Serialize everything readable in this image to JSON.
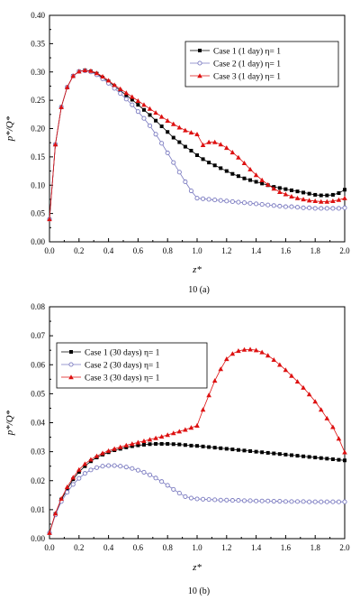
{
  "chart_data": [
    {
      "type": "line",
      "caption": "10 (a)",
      "xlabel": "z*",
      "ylabel": "p*/Q*",
      "xlim": [
        0.0,
        2.0
      ],
      "ylim": [
        0.0,
        0.4
      ],
      "xticks": [
        "0.0",
        "0.2",
        "0.4",
        "0.6",
        "0.8",
        "1.0",
        "1.2",
        "1.4",
        "1.6",
        "1.8",
        "2.0"
      ],
      "yticks": [
        "0.00",
        "0.05",
        "0.10",
        "0.15",
        "0.20",
        "0.25",
        "0.30",
        "0.35",
        "0.40"
      ],
      "grid": false,
      "legend_position": "top-right",
      "series": [
        {
          "name": "Case 1 (1 day) η= 1",
          "color": "#000000",
          "marker": "square-filled",
          "x": [
            0.0,
            0.04,
            0.08,
            0.12,
            0.16,
            0.2,
            0.24,
            0.28,
            0.32,
            0.36,
            0.4,
            0.44,
            0.48,
            0.52,
            0.56,
            0.6,
            0.64,
            0.68,
            0.72,
            0.76,
            0.8,
            0.84,
            0.88,
            0.92,
            0.96,
            1.0,
            1.04,
            1.08,
            1.12,
            1.16,
            1.2,
            1.24,
            1.28,
            1.32,
            1.36,
            1.4,
            1.44,
            1.48,
            1.52,
            1.56,
            1.6,
            1.64,
            1.68,
            1.72,
            1.76,
            1.8,
            1.84,
            1.88,
            1.92,
            1.96,
            2.0
          ],
          "y": [
            0.04,
            0.172,
            0.238,
            0.273,
            0.293,
            0.301,
            0.303,
            0.301,
            0.297,
            0.29,
            0.283,
            0.275,
            0.267,
            0.259,
            0.251,
            0.242,
            0.233,
            0.224,
            0.214,
            0.204,
            0.194,
            0.184,
            0.176,
            0.168,
            0.161,
            0.153,
            0.146,
            0.14,
            0.135,
            0.13,
            0.125,
            0.12,
            0.116,
            0.112,
            0.109,
            0.106,
            0.103,
            0.1,
            0.097,
            0.095,
            0.093,
            0.091,
            0.089,
            0.087,
            0.085,
            0.083,
            0.082,
            0.082,
            0.083,
            0.086,
            0.092
          ]
        },
        {
          "name": "Case 2 (1 day) η= 1",
          "color": "#7a7ac0",
          "marker": "circle-open",
          "x": [
            0.0,
            0.04,
            0.08,
            0.12,
            0.16,
            0.2,
            0.24,
            0.28,
            0.32,
            0.36,
            0.4,
            0.44,
            0.48,
            0.52,
            0.56,
            0.6,
            0.64,
            0.68,
            0.72,
            0.76,
            0.8,
            0.84,
            0.88,
            0.92,
            0.96,
            1.0,
            1.04,
            1.08,
            1.12,
            1.16,
            1.2,
            1.24,
            1.28,
            1.32,
            1.36,
            1.4,
            1.44,
            1.48,
            1.52,
            1.56,
            1.6,
            1.64,
            1.68,
            1.72,
            1.76,
            1.8,
            1.84,
            1.88,
            1.92,
            1.96,
            2.0
          ],
          "y": [
            0.04,
            0.172,
            0.238,
            0.273,
            0.293,
            0.301,
            0.302,
            0.3,
            0.295,
            0.288,
            0.28,
            0.271,
            0.262,
            0.252,
            0.242,
            0.23,
            0.218,
            0.205,
            0.19,
            0.174,
            0.157,
            0.14,
            0.123,
            0.106,
            0.09,
            0.077,
            0.076,
            0.075,
            0.074,
            0.073,
            0.072,
            0.071,
            0.07,
            0.069,
            0.068,
            0.067,
            0.066,
            0.065,
            0.064,
            0.063,
            0.062,
            0.062,
            0.061,
            0.06,
            0.06,
            0.059,
            0.059,
            0.059,
            0.059,
            0.059,
            0.06
          ]
        },
        {
          "name": "Case 3 (1 day) η= 1",
          "color": "#dd1111",
          "marker": "triangle-filled",
          "x": [
            0.0,
            0.04,
            0.08,
            0.12,
            0.16,
            0.2,
            0.24,
            0.28,
            0.32,
            0.36,
            0.4,
            0.44,
            0.48,
            0.52,
            0.56,
            0.6,
            0.64,
            0.68,
            0.72,
            0.76,
            0.8,
            0.84,
            0.88,
            0.92,
            0.96,
            1.0,
            1.04,
            1.08,
            1.12,
            1.16,
            1.2,
            1.24,
            1.28,
            1.32,
            1.36,
            1.4,
            1.44,
            1.48,
            1.52,
            1.56,
            1.6,
            1.64,
            1.68,
            1.72,
            1.76,
            1.8,
            1.84,
            1.88,
            1.92,
            1.96,
            2.0
          ],
          "y": [
            0.04,
            0.172,
            0.238,
            0.273,
            0.293,
            0.301,
            0.303,
            0.302,
            0.298,
            0.292,
            0.285,
            0.277,
            0.27,
            0.263,
            0.256,
            0.249,
            0.242,
            0.235,
            0.228,
            0.221,
            0.214,
            0.208,
            0.202,
            0.197,
            0.193,
            0.19,
            0.171,
            0.176,
            0.176,
            0.172,
            0.166,
            0.158,
            0.149,
            0.139,
            0.128,
            0.118,
            0.109,
            0.101,
            0.094,
            0.088,
            0.084,
            0.08,
            0.077,
            0.075,
            0.073,
            0.072,
            0.071,
            0.071,
            0.072,
            0.074,
            0.077
          ]
        }
      ]
    },
    {
      "type": "line",
      "caption": "10 (b)",
      "xlabel": "z*",
      "ylabel": "p*/Q*",
      "xlim": [
        0.0,
        2.0
      ],
      "ylim": [
        0.0,
        0.08
      ],
      "xticks": [
        "0.0",
        "0.2",
        "0.4",
        "0.6",
        "0.8",
        "1.0",
        "1.2",
        "1.4",
        "1.6",
        "1.8",
        "2.0"
      ],
      "yticks": [
        "0.00",
        "0.01",
        "0.02",
        "0.03",
        "0.04",
        "0.05",
        "0.06",
        "0.07",
        "0.08"
      ],
      "grid": false,
      "legend_position": "top-left",
      "series": [
        {
          "name": "Case 1 (30 days) η= 1",
          "color": "#000000",
          "marker": "square-filled",
          "x": [
            0.0,
            0.04,
            0.08,
            0.12,
            0.16,
            0.2,
            0.24,
            0.28,
            0.32,
            0.36,
            0.4,
            0.44,
            0.48,
            0.52,
            0.56,
            0.6,
            0.64,
            0.68,
            0.72,
            0.76,
            0.8,
            0.84,
            0.88,
            0.92,
            0.96,
            1.0,
            1.04,
            1.08,
            1.12,
            1.16,
            1.2,
            1.24,
            1.28,
            1.32,
            1.36,
            1.4,
            1.44,
            1.48,
            1.52,
            1.56,
            1.6,
            1.64,
            1.68,
            1.72,
            1.76,
            1.8,
            1.84,
            1.88,
            1.92,
            1.96,
            2.0
          ],
          "y": [
            0.002,
            0.0085,
            0.0135,
            0.017,
            0.0205,
            0.023,
            0.025,
            0.0267,
            0.028,
            0.029,
            0.0298,
            0.0305,
            0.031,
            0.0315,
            0.0319,
            0.0322,
            0.0324,
            0.0326,
            0.0327,
            0.0327,
            0.0327,
            0.0326,
            0.0325,
            0.0323,
            0.0321,
            0.032,
            0.0318,
            0.0316,
            0.0314,
            0.0312,
            0.031,
            0.0308,
            0.0306,
            0.0304,
            0.0302,
            0.03,
            0.0298,
            0.0296,
            0.0294,
            0.0292,
            0.029,
            0.0288,
            0.0286,
            0.0284,
            0.0282,
            0.028,
            0.0278,
            0.0276,
            0.0274,
            0.0272,
            0.027
          ]
        },
        {
          "name": "Case 2 (30 days) η= 1",
          "color": "#7a7ac0",
          "marker": "circle-open",
          "x": [
            0.0,
            0.04,
            0.08,
            0.12,
            0.16,
            0.2,
            0.24,
            0.28,
            0.32,
            0.36,
            0.4,
            0.44,
            0.48,
            0.52,
            0.56,
            0.6,
            0.64,
            0.68,
            0.72,
            0.76,
            0.8,
            0.84,
            0.88,
            0.92,
            0.96,
            1.0,
            1.04,
            1.08,
            1.12,
            1.16,
            1.2,
            1.24,
            1.28,
            1.32,
            1.36,
            1.4,
            1.44,
            1.48,
            1.52,
            1.56,
            1.6,
            1.64,
            1.68,
            1.72,
            1.76,
            1.8,
            1.84,
            1.88,
            1.92,
            1.96,
            2.0
          ],
          "y": [
            0.002,
            0.0082,
            0.0128,
            0.016,
            0.0187,
            0.0208,
            0.0225,
            0.0237,
            0.0245,
            0.025,
            0.0252,
            0.0252,
            0.025,
            0.0247,
            0.0242,
            0.0236,
            0.0229,
            0.022,
            0.0209,
            0.0197,
            0.0184,
            0.017,
            0.0157,
            0.0145,
            0.014,
            0.0137,
            0.0136,
            0.0135,
            0.0134,
            0.0133,
            0.0133,
            0.0132,
            0.0132,
            0.0131,
            0.0131,
            0.013,
            0.013,
            0.013,
            0.0129,
            0.0129,
            0.0128,
            0.0128,
            0.0128,
            0.0128,
            0.0127,
            0.0127,
            0.0127,
            0.0127,
            0.0127,
            0.0127,
            0.0127
          ]
        },
        {
          "name": "Case 3 (30 days) η= 1",
          "color": "#dd1111",
          "marker": "triangle-filled",
          "x": [
            0.0,
            0.04,
            0.08,
            0.12,
            0.16,
            0.2,
            0.24,
            0.28,
            0.32,
            0.36,
            0.4,
            0.44,
            0.48,
            0.52,
            0.56,
            0.6,
            0.64,
            0.68,
            0.72,
            0.76,
            0.8,
            0.84,
            0.88,
            0.92,
            0.96,
            1.0,
            1.04,
            1.08,
            1.12,
            1.16,
            1.2,
            1.24,
            1.28,
            1.32,
            1.36,
            1.4,
            1.44,
            1.48,
            1.52,
            1.56,
            1.6,
            1.64,
            1.68,
            1.72,
            1.76,
            1.8,
            1.84,
            1.88,
            1.92,
            1.96,
            2.0
          ],
          "y": [
            0.002,
            0.0087,
            0.0138,
            0.0178,
            0.0211,
            0.0238,
            0.0258,
            0.0273,
            0.0285,
            0.0295,
            0.0303,
            0.031,
            0.0316,
            0.0322,
            0.0327,
            0.0332,
            0.0337,
            0.0342,
            0.0347,
            0.0352,
            0.0358,
            0.0364,
            0.037,
            0.0376,
            0.0383,
            0.039,
            0.0445,
            0.0495,
            0.0545,
            0.0585,
            0.062,
            0.0638,
            0.0648,
            0.0652,
            0.0653,
            0.065,
            0.0643,
            0.0632,
            0.0617,
            0.06,
            0.0582,
            0.0562,
            0.0542,
            0.0521,
            0.0498,
            0.0473,
            0.0445,
            0.0415,
            0.0385,
            0.0345,
            0.0298
          ]
        }
      ]
    }
  ]
}
